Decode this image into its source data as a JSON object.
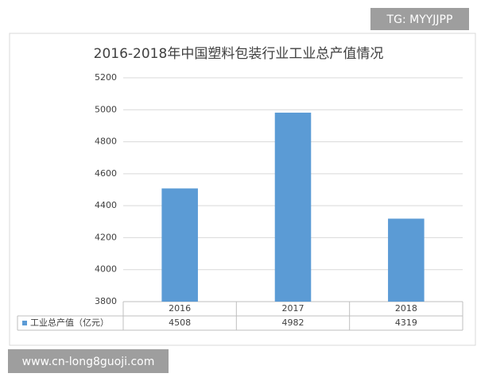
{
  "chart_data": {
    "type": "bar",
    "title": "2016-2018年中国塑料包装行业工业总产值情况",
    "categories": [
      "2016",
      "2017",
      "2018"
    ],
    "series": [
      {
        "name": "工业总产值（亿元）",
        "color": "#5b9bd5",
        "values": [
          4508,
          4982,
          4319
        ]
      }
    ],
    "ylim": [
      3800,
      5200
    ],
    "yticks": [
      3800,
      4000,
      4200,
      4400,
      4600,
      4800,
      5000,
      5200
    ],
    "grid": true,
    "data_table": true
  },
  "overlays": [
    "TG: MYYJJPP",
    "www.cn-long8guoji.com"
  ]
}
